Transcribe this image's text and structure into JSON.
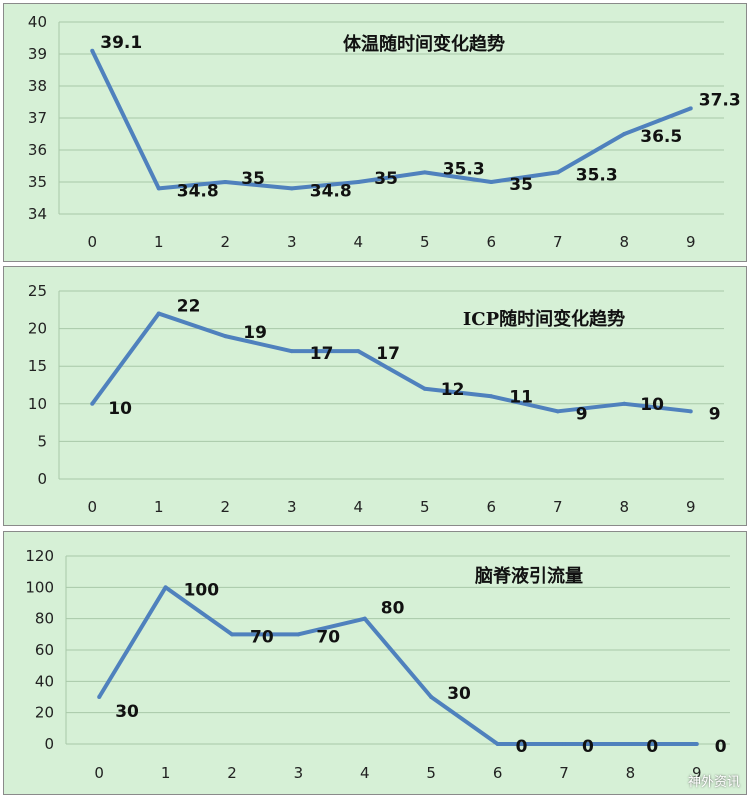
{
  "chart_data": [
    {
      "type": "line",
      "title": "体温随时间变化趋势",
      "categories": [
        "0",
        "1",
        "2",
        "3",
        "4",
        "5",
        "6",
        "7",
        "8",
        "9"
      ],
      "values": [
        39.1,
        34.8,
        35,
        34.8,
        35,
        35.3,
        35,
        35.3,
        36.5,
        37.3
      ],
      "data_labels": [
        "39.1",
        "34.8",
        "35",
        "34.8",
        "35",
        "35.3",
        "35",
        "35.3",
        "36.5",
        "37.3"
      ],
      "ylim": [
        34,
        40
      ],
      "yticks": [
        "34",
        "35",
        "36",
        "37",
        "38",
        "39",
        "40"
      ],
      "grid": true,
      "line_color": "#4f81bd"
    },
    {
      "type": "line",
      "title": "ICP随时间变化趋势",
      "categories": [
        "0",
        "1",
        "2",
        "3",
        "4",
        "5",
        "6",
        "7",
        "8",
        "9"
      ],
      "values": [
        10,
        22,
        19,
        17,
        17,
        12,
        11,
        9,
        10,
        9
      ],
      "data_labels": [
        "10",
        "22",
        "19",
        "17",
        "17",
        "12",
        "11",
        "9",
        "10",
        "9"
      ],
      "ylim": [
        0,
        25
      ],
      "yticks": [
        "0",
        "5",
        "10",
        "15",
        "20",
        "25"
      ],
      "grid": true,
      "line_color": "#4f81bd"
    },
    {
      "type": "line",
      "title": "脑脊液引流量",
      "categories": [
        "0",
        "1",
        "2",
        "3",
        "4",
        "5",
        "6",
        "7",
        "8",
        "9"
      ],
      "values": [
        30,
        100,
        70,
        70,
        80,
        30,
        0,
        0,
        0,
        0
      ],
      "data_labels": [
        "30",
        "100",
        "70",
        "70",
        "80",
        "30",
        "0",
        "0",
        "0",
        "0"
      ],
      "ylim": [
        0,
        120
      ],
      "yticks": [
        "0",
        "20",
        "40",
        "60",
        "80",
        "100",
        "120"
      ],
      "grid": true,
      "line_color": "#4f81bd"
    }
  ],
  "watermark": "神外资讯",
  "colors": {
    "panel_bg": "#d6f0d6",
    "grid": "#a8c8a8",
    "line": "#4f81bd"
  }
}
